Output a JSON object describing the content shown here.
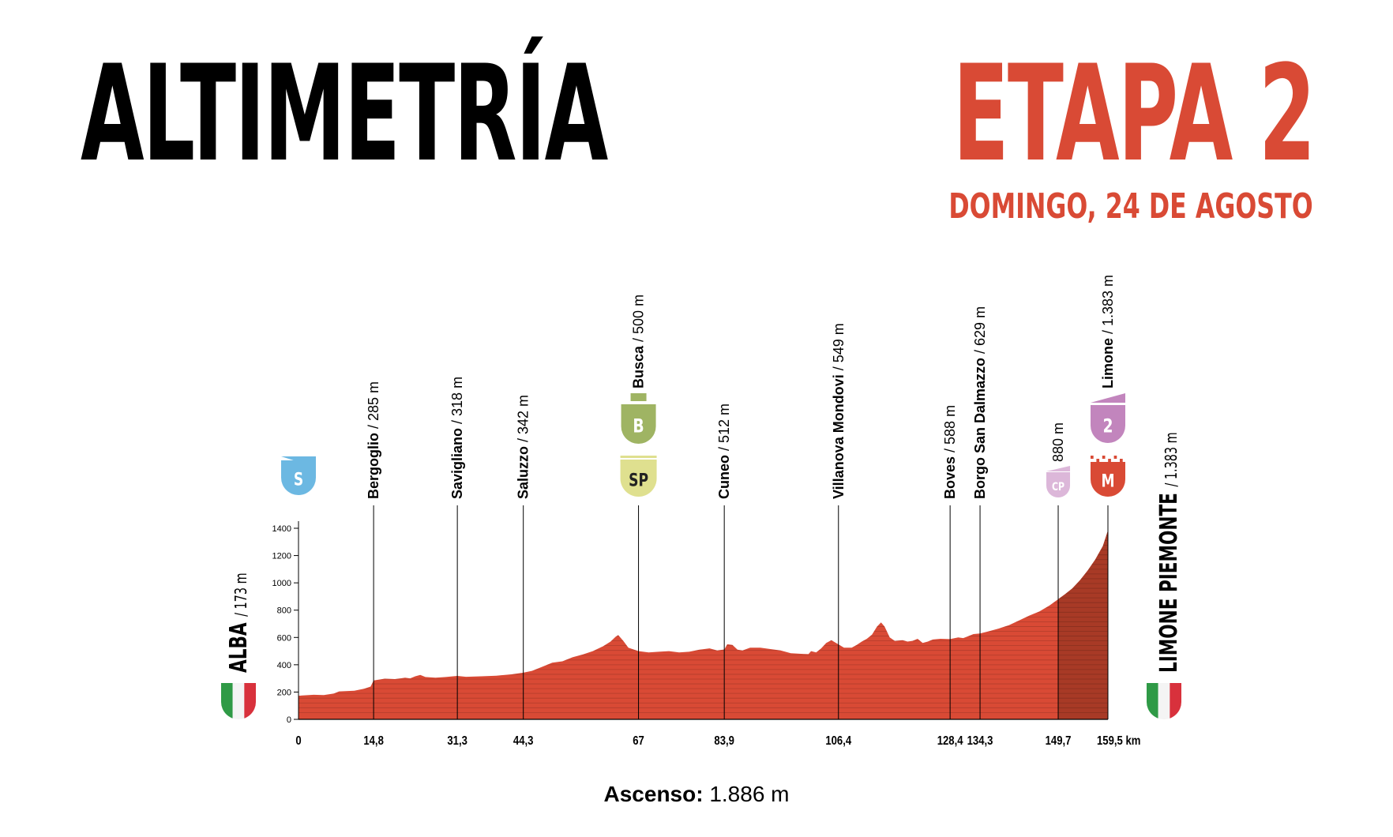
{
  "header": {
    "title": "ALTIMETRÍA",
    "stage": "ETAPA 2",
    "date": "DOMINGO, 24 DE AGOSTO"
  },
  "colors": {
    "profile": "#d94a35",
    "profile_final": "#a83a26",
    "title_accent": "#d94a35",
    "start_badge": "#6cb8e2",
    "bonus_badge": "#9fb463",
    "sprint_badge": "#dfe08f",
    "climb_cat2": "#c285bd",
    "climb_cp": "#dcb7d9",
    "finish_badge": "#d94a35"
  },
  "footer": {
    "ascent_label": "Ascenso:",
    "ascent_value": "1.886 m"
  },
  "chart_data": {
    "type": "area",
    "title": "",
    "xlabel": "",
    "ylabel": "",
    "x_unit": "km",
    "xlim": [
      0,
      159.5
    ],
    "ylim": [
      0,
      1400
    ],
    "y_ticks": [
      0,
      200,
      400,
      600,
      800,
      1000,
      1200,
      1400
    ],
    "x_ticks": [
      {
        "value": 0,
        "label": "0"
      },
      {
        "value": 14.8,
        "label": "14,8"
      },
      {
        "value": 31.3,
        "label": "31,3"
      },
      {
        "value": 44.3,
        "label": "44,3"
      },
      {
        "value": 67,
        "label": "67"
      },
      {
        "value": 83.9,
        "label": "83,9"
      },
      {
        "value": 106.4,
        "label": "106,4"
      },
      {
        "value": 128.4,
        "label": "128,4"
      },
      {
        "value": 134.3,
        "label": "134,3"
      },
      {
        "value": 149.7,
        "label": "149,7"
      },
      {
        "value": 159.5,
        "label": "159,5 km"
      }
    ],
    "profile": [
      [
        0,
        173
      ],
      [
        3,
        180
      ],
      [
        5,
        178
      ],
      [
        7,
        190
      ],
      [
        8,
        205
      ],
      [
        11,
        210
      ],
      [
        13,
        225
      ],
      [
        14.2,
        240
      ],
      [
        14.8,
        285
      ],
      [
        17,
        298
      ],
      [
        19,
        295
      ],
      [
        21,
        305
      ],
      [
        22,
        300
      ],
      [
        23,
        315
      ],
      [
        24,
        325
      ],
      [
        25,
        310
      ],
      [
        27,
        305
      ],
      [
        29,
        310
      ],
      [
        31.3,
        318
      ],
      [
        33,
        312
      ],
      [
        36,
        315
      ],
      [
        39,
        320
      ],
      [
        42,
        330
      ],
      [
        44.3,
        342
      ],
      [
        46,
        355
      ],
      [
        48,
        385
      ],
      [
        50,
        415
      ],
      [
        52,
        425
      ],
      [
        54,
        455
      ],
      [
        56,
        475
      ],
      [
        58,
        500
      ],
      [
        60,
        535
      ],
      [
        61.5,
        570
      ],
      [
        62.5,
        605
      ],
      [
        63,
        618
      ],
      [
        64,
        575
      ],
      [
        65,
        525
      ],
      [
        67,
        500
      ],
      [
        69,
        490
      ],
      [
        71,
        495
      ],
      [
        73,
        500
      ],
      [
        75,
        490
      ],
      [
        77,
        495
      ],
      [
        79,
        510
      ],
      [
        81,
        520
      ],
      [
        82.5,
        505
      ],
      [
        83.9,
        512
      ],
      [
        84.5,
        550
      ],
      [
        85.5,
        545
      ],
      [
        86.5,
        510
      ],
      [
        87.5,
        505
      ],
      [
        89,
        525
      ],
      [
        91,
        525
      ],
      [
        93,
        515
      ],
      [
        95,
        505
      ],
      [
        97,
        485
      ],
      [
        99,
        480
      ],
      [
        100.5,
        478
      ],
      [
        101,
        500
      ],
      [
        102,
        490
      ],
      [
        103,
        520
      ],
      [
        104,
        560
      ],
      [
        105,
        580
      ],
      [
        106.4,
        549
      ],
      [
        107.5,
        525
      ],
      [
        109,
        525
      ],
      [
        110,
        545
      ],
      [
        111,
        570
      ],
      [
        112,
        590
      ],
      [
        113,
        620
      ],
      [
        114,
        680
      ],
      [
        114.8,
        710
      ],
      [
        115.5,
        680
      ],
      [
        116.5,
        600
      ],
      [
        117.5,
        575
      ],
      [
        119,
        580
      ],
      [
        120,
        570
      ],
      [
        121,
        575
      ],
      [
        122,
        590
      ],
      [
        123,
        560
      ],
      [
        124,
        570
      ],
      [
        125,
        585
      ],
      [
        126.5,
        590
      ],
      [
        128.4,
        588
      ],
      [
        130,
        600
      ],
      [
        131,
        595
      ],
      [
        132,
        610
      ],
      [
        133,
        625
      ],
      [
        134.3,
        629
      ],
      [
        136,
        645
      ],
      [
        138,
        665
      ],
      [
        140,
        690
      ],
      [
        142,
        725
      ],
      [
        144,
        760
      ],
      [
        146,
        790
      ],
      [
        148,
        835
      ],
      [
        149.7,
        880
      ],
      [
        151,
        915
      ],
      [
        152.5,
        960
      ],
      [
        154,
        1020
      ],
      [
        155.5,
        1090
      ],
      [
        157,
        1170
      ],
      [
        158.5,
        1270
      ],
      [
        159.5,
        1383
      ]
    ],
    "highlight": {
      "from": 149.7,
      "to": 159.5
    },
    "places": [
      {
        "km": 14.8,
        "name": "Bergoglio",
        "alt": "/ 285 m",
        "badge": ""
      },
      {
        "km": 31.3,
        "name": "Savigliano",
        "alt": "/ 318 m",
        "badge": ""
      },
      {
        "km": 44.3,
        "name": "Saluzzo",
        "alt": "/ 342 m",
        "badge": ""
      },
      {
        "km": 67,
        "name": "Busca",
        "alt": "/ 500 m",
        "badge": "bonus-sprint"
      },
      {
        "km": 83.9,
        "name": "Cuneo",
        "alt": "/ 512 m",
        "badge": ""
      },
      {
        "km": 106.4,
        "name": "Villanova Mondovi",
        "alt": "/ 549 m",
        "badge": ""
      },
      {
        "km": 128.4,
        "name": "Boves",
        "alt": "/ 588 m",
        "badge": ""
      },
      {
        "km": 134.3,
        "name": "Borgo San Dalmazzo",
        "alt": "/ 629 m",
        "badge": ""
      },
      {
        "km": 149.7,
        "name": "",
        "alt": "880 m",
        "badge": "cp"
      },
      {
        "km": 159.5,
        "name": "Limone",
        "alt": "/ 1.383 m",
        "badge": "cat2-finish"
      }
    ],
    "badges": {
      "start": "S",
      "bonus": "B",
      "sprint": "SP",
      "cp": "CP",
      "cat2": "2",
      "finish": "M"
    },
    "start_town": {
      "name": "ALBA",
      "alt": "/ 173 m"
    },
    "finish_town": {
      "name": "LIMONE PIEMONTE",
      "alt": "/ 1.383 m"
    }
  }
}
